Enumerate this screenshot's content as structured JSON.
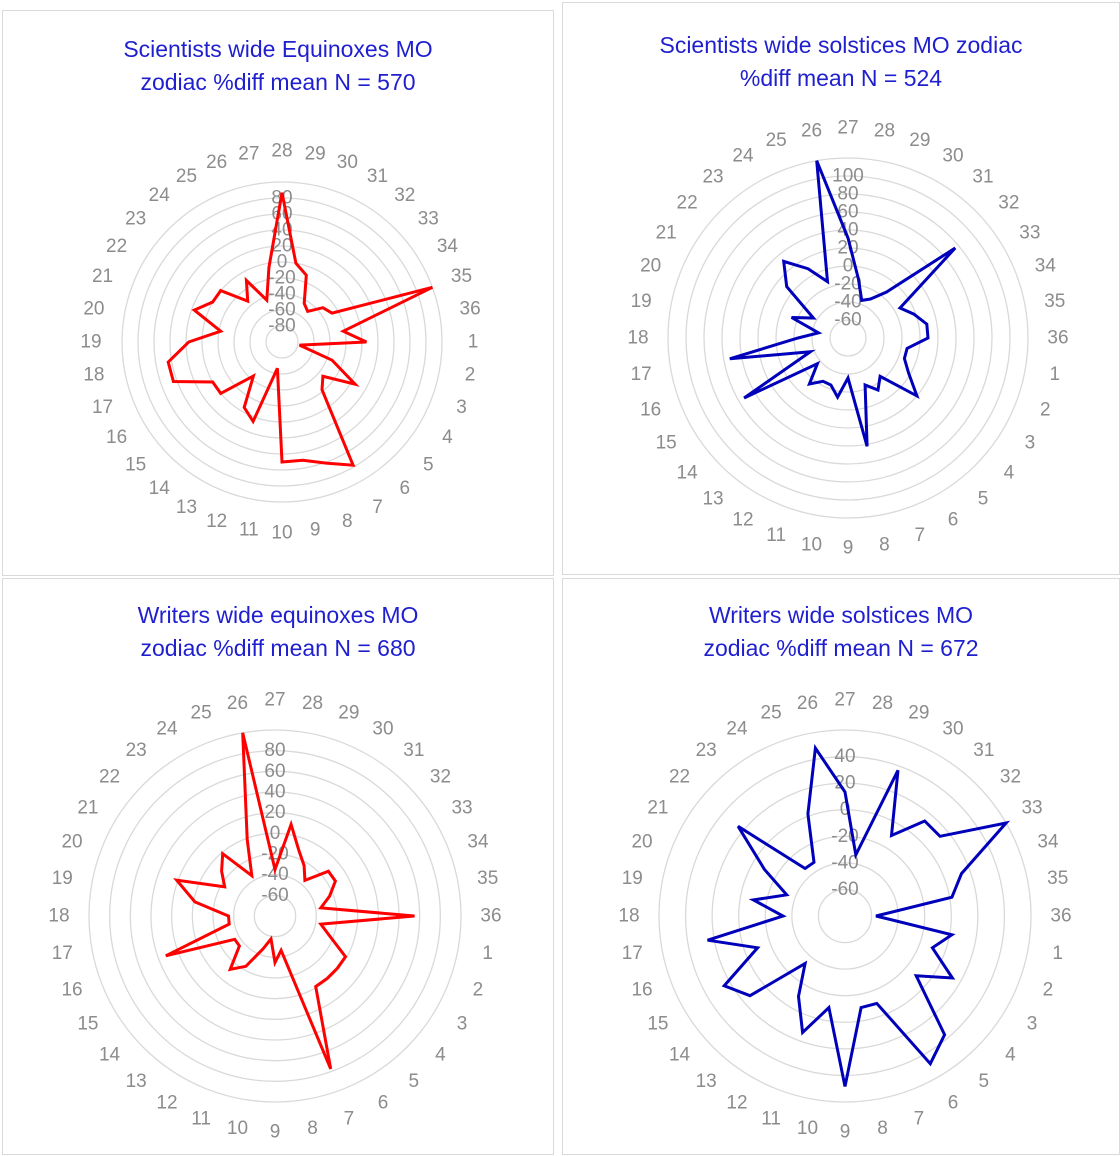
{
  "chart_data": [
    {
      "type": "radar",
      "title": "Scientists wide Equinoxes MO\nzodiac %diff mean N = 570",
      "color": "#ff0000",
      "categories": [
        "28",
        "29",
        "30",
        "31",
        "32",
        "33",
        "34",
        "35",
        "36",
        "1",
        "2",
        "3",
        "4",
        "5",
        "6",
        "7",
        "8",
        "9",
        "10",
        "11",
        "12",
        "13",
        "14",
        "15",
        "16",
        "17",
        "18",
        "19",
        "20",
        "21",
        "22",
        "23",
        "24",
        "25",
        "26",
        "27"
      ],
      "ticks": [
        "-80",
        "-60",
        "-40",
        "-20",
        "0",
        "20",
        "40",
        "60",
        "80"
      ],
      "ylim": [
        -100,
        80
      ],
      "grid": true,
      "values": [
        68,
        -10,
        -20,
        -50,
        -55,
        -40,
        -35,
        80,
        -30,
        -5,
        -80,
        -40,
        -5,
        -40,
        -30,
        60,
        45,
        35,
        35,
        -70,
        -5,
        -15,
        -50,
        -10,
        -10,
        30,
        30,
        5,
        -30,
        5,
        -10,
        -10,
        -40,
        -20,
        -50,
        -15
      ]
    },
    {
      "type": "radar",
      "title": "Scientists wide solstices MO zodiac\n%diff mean N = 524",
      "color": "#0000bb",
      "categories": [
        "27",
        "28",
        "29",
        "30",
        "31",
        "32",
        "33",
        "34",
        "35",
        "36",
        "1",
        "2",
        "3",
        "4",
        "5",
        "6",
        "7",
        "8",
        "9",
        "10",
        "11",
        "12",
        "13",
        "14",
        "15",
        "16",
        "17",
        "18",
        "19",
        "20",
        "21",
        "22",
        "23",
        "24",
        "25",
        "26"
      ],
      "ticks": [
        "-60",
        "-40",
        "-20",
        "0",
        "20",
        "40",
        "60",
        "80",
        "100"
      ],
      "ylim": [
        -80,
        100
      ],
      "grid": true,
      "values": [
        20,
        -20,
        -40,
        -35,
        -20,
        60,
        -20,
        -10,
        0,
        0,
        -20,
        -20,
        -10,
        10,
        -30,
        -20,
        -30,
        30,
        -40,
        -20,
        -30,
        -30,
        -20,
        -40,
        40,
        -40,
        40,
        -30,
        -50,
        -20,
        -40,
        0,
        20,
        0,
        -20,
        100
      ]
    },
    {
      "type": "radar",
      "title": "Writers wide equinoxes MO\nzodiac %diff mean N = 680",
      "color": "#ff0000",
      "categories": [
        "27",
        "28",
        "29",
        "30",
        "31",
        "32",
        "33",
        "34",
        "35",
        "36",
        "1",
        "2",
        "3",
        "4",
        "5",
        "6",
        "7",
        "8",
        "9",
        "10",
        "11",
        "12",
        "13",
        "14",
        "15",
        "16",
        "17",
        "18",
        "19",
        "20",
        "21",
        "22",
        "23",
        "24",
        "25",
        "26"
      ],
      "ticks": [
        "-60",
        "-40",
        "-20",
        "0",
        "20",
        "40",
        "60",
        "80"
      ],
      "ylim": [
        -80,
        80
      ],
      "grid": true,
      "values": [
        -40,
        0,
        -20,
        -30,
        -40,
        -20,
        -20,
        -30,
        -40,
        40,
        -40,
        -30,
        -10,
        -10,
        -10,
        -10,
        60,
        -50,
        -40,
        -60,
        -50,
        -30,
        -20,
        -40,
        -40,
        20,
        -40,
        -40,
        -10,
        10,
        -30,
        -20,
        -10,
        -40,
        -10,
        80
      ]
    },
    {
      "type": "radar",
      "title": "Writers wide solstices MO\nzodiac %diff mean N = 672",
      "color": "#0000bb",
      "categories": [
        "27",
        "28",
        "29",
        "30",
        "31",
        "32",
        "33",
        "34",
        "35",
        "36",
        "1",
        "2",
        "3",
        "4",
        "5",
        "6",
        "7",
        "8",
        "9",
        "10",
        "11",
        "12",
        "13",
        "14",
        "15",
        "16",
        "17",
        "18",
        "19",
        "20",
        "21",
        "22",
        "23",
        "24",
        "25",
        "26"
      ],
      "ticks": [
        "-60",
        "-40",
        "-20",
        "0",
        "20",
        "40"
      ],
      "ylim": [
        -80,
        40
      ],
      "grid": true,
      "values": [
        0,
        -40,
        20,
        -20,
        0,
        0,
        40,
        0,
        -10,
        -60,
        -10,
        -20,
        0,
        -20,
        20,
        30,
        -20,
        -20,
        30,
        -20,
        0,
        -20,
        -40,
        0,
        10,
        -20,
        10,
        -40,
        -20,
        -40,
        -20,
        10,
        -40,
        -40,
        -10,
        30
      ]
    }
  ]
}
